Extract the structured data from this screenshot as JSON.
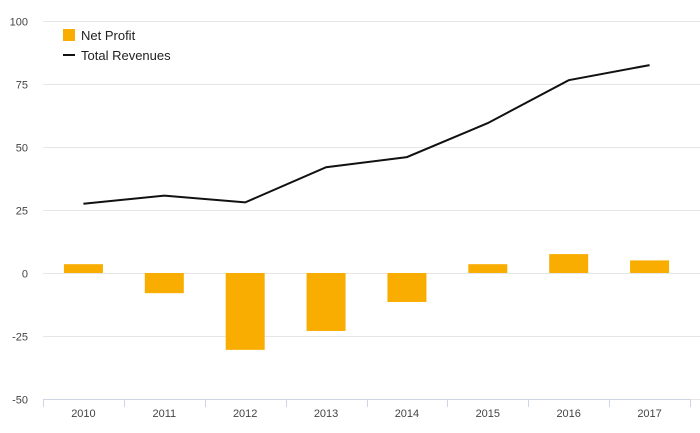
{
  "chart_data": {
    "type": "bar",
    "categories": [
      "2010",
      "2011",
      "2012",
      "2013",
      "2014",
      "2015",
      "2016",
      "2017"
    ],
    "series": [
      {
        "name": "Net Profit",
        "type": "bar",
        "color": "#f9ad00",
        "values": [
          3.5,
          -8,
          -30.5,
          -23,
          -11.5,
          3.5,
          7.5,
          5
        ]
      },
      {
        "name": "Total Revenues",
        "type": "line",
        "color": "#111111",
        "values": [
          27.5,
          30.7,
          28,
          42,
          46,
          59.5,
          76.5,
          82.5
        ]
      }
    ],
    "ylim": [
      -50,
      100
    ],
    "yticks": [
      100,
      75,
      50,
      25,
      0,
      -25,
      -50
    ],
    "ytick_labels": [
      "100",
      "75",
      "50",
      "25",
      "0",
      "-25",
      "-50"
    ],
    "grid": true,
    "legend_position": "top-left",
    "title": "",
    "xlabel": "",
    "ylabel": ""
  }
}
